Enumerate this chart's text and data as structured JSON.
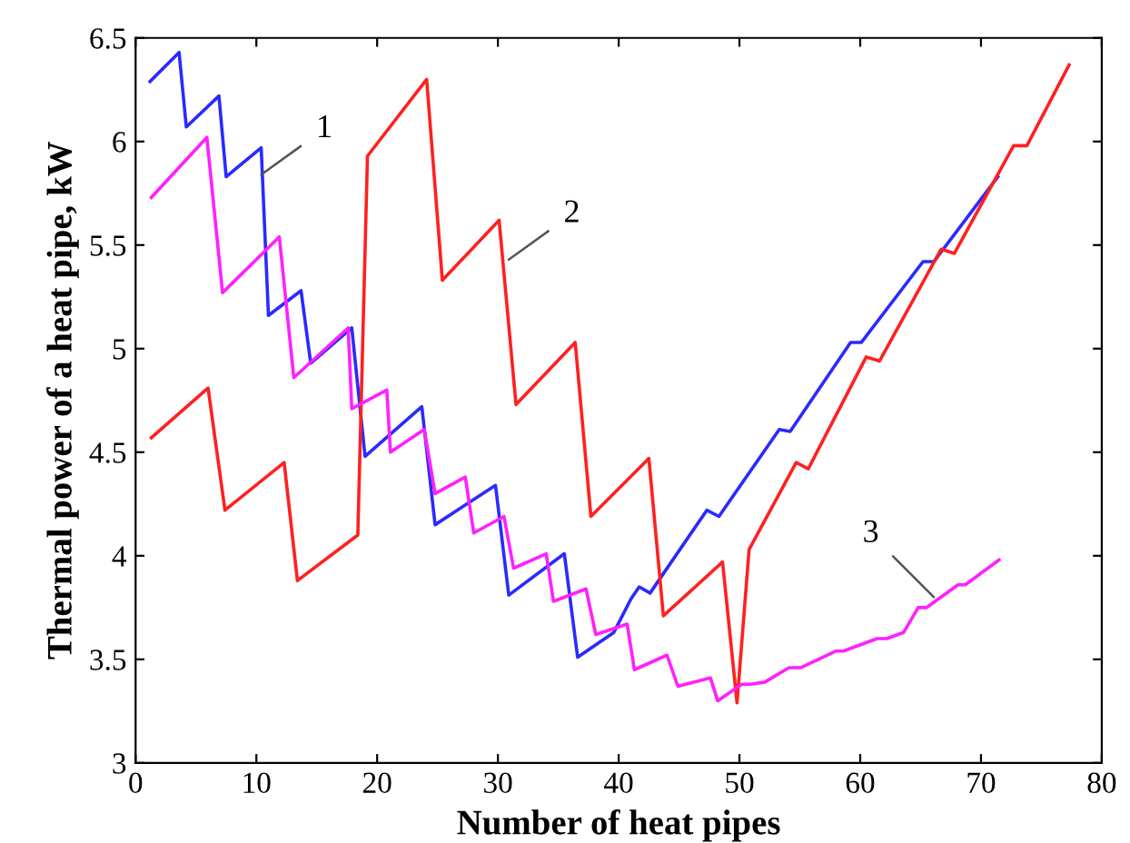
{
  "chart_data": {
    "type": "line",
    "xlabel": "Number of heat pipes",
    "ylabel": "Thermal power of a heat pipe, kW",
    "xlim": [
      0,
      80
    ],
    "ylim": [
      3,
      6.5
    ],
    "xticks": [
      0,
      10,
      20,
      30,
      40,
      50,
      60,
      70,
      80
    ],
    "yticks": [
      3,
      3.5,
      4,
      4.5,
      5,
      5.5,
      6,
      6.5
    ],
    "grid": false,
    "marker": "none",
    "line_style": "solid",
    "series": [
      {
        "color": "#2a2aff",
        "x": [
          1.2,
          3.6,
          4.2,
          6.9,
          7.5,
          10.4,
          11.0,
          13.7,
          14.5,
          17.9,
          19.0,
          23.7,
          24.8,
          29.8,
          30.9,
          35.5,
          36.6,
          39.6,
          41.0,
          41.7,
          42.6,
          47.3,
          48.3,
          53.3,
          54.2,
          59.2,
          60.1,
          65.2,
          66.1,
          71.4
        ],
        "values": [
          6.29,
          6.43,
          6.07,
          6.22,
          5.83,
          5.97,
          5.16,
          5.28,
          4.93,
          5.1,
          4.48,
          4.72,
          4.15,
          4.34,
          3.81,
          4.01,
          3.51,
          3.63,
          3.79,
          3.85,
          3.82,
          4.22,
          4.19,
          4.61,
          4.6,
          5.03,
          5.03,
          5.42,
          5.42,
          5.83
        ]
      },
      {
        "color": "#ff2020",
        "x": [
          1.3,
          6.0,
          7.4,
          12.3,
          13.4,
          18.4,
          19.2,
          24.1,
          25.4,
          30.1,
          31.5,
          36.4,
          37.7,
          42.5,
          43.7,
          48.6,
          49.8,
          50.8,
          54.7,
          55.7,
          60.5,
          61.6,
          66.7,
          67.8,
          72.7,
          73.8,
          77.3
        ],
        "values": [
          4.57,
          4.81,
          4.22,
          4.45,
          3.88,
          4.1,
          5.93,
          6.3,
          5.33,
          5.62,
          4.73,
          5.03,
          4.19,
          4.47,
          3.71,
          3.97,
          3.29,
          4.03,
          4.45,
          4.42,
          4.96,
          4.94,
          5.48,
          5.46,
          5.98,
          5.98,
          6.37
        ]
      },
      {
        "color": "#ff20ff",
        "x": [
          1.3,
          5.9,
          7.2,
          11.9,
          13.1,
          17.6,
          17.9,
          20.8,
          21.1,
          23.9,
          24.8,
          27.3,
          28.0,
          30.5,
          31.3,
          34.0,
          34.6,
          37.3,
          38.1,
          40.7,
          41.3,
          44.0,
          44.9,
          47.6,
          48.2,
          50.2,
          50.9,
          52.1,
          54.1,
          55.1,
          58.0,
          58.6,
          61.4,
          62.2,
          63.6,
          64.8,
          65.5,
          68.1,
          68.7,
          71.5
        ],
        "values": [
          5.73,
          6.02,
          5.27,
          5.54,
          4.86,
          5.1,
          4.71,
          4.8,
          4.5,
          4.61,
          4.3,
          4.38,
          4.11,
          4.19,
          3.94,
          4.01,
          3.78,
          3.84,
          3.62,
          3.67,
          3.45,
          3.52,
          3.37,
          3.41,
          3.3,
          3.38,
          3.38,
          3.39,
          3.46,
          3.46,
          3.54,
          3.54,
          3.6,
          3.6,
          3.63,
          3.75,
          3.75,
          3.86,
          3.86,
          3.98
        ]
      }
    ],
    "annotations": [
      {
        "text": "1",
        "x": 10.4,
        "y": 5.84
      },
      {
        "text": "2",
        "x": 30.9,
        "y": 5.43
      },
      {
        "text": "3",
        "x": 66.1,
        "y": 3.8
      }
    ]
  }
}
